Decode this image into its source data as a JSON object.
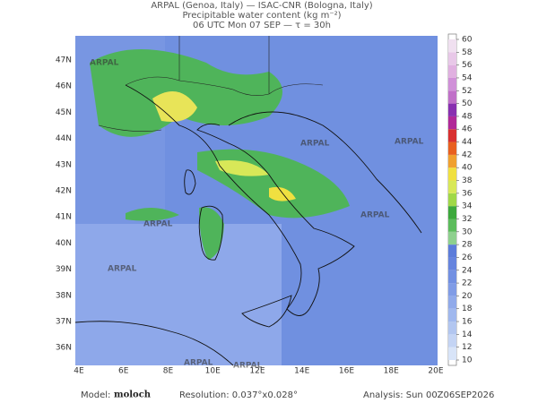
{
  "header": {
    "lines": [
      "ARPAL (Genoa, Italy)  —  ISAC-CNR (Bologna, Italy)",
      "Precipitable water content (kg m⁻²)",
      "06 UTC Mon 07 SEP  —  τ = 30h"
    ]
  },
  "map": {
    "lat_labels": [
      "47N",
      "46N",
      "45N",
      "44N",
      "43N",
      "42N",
      "41N",
      "40N",
      "39N",
      "38N",
      "37N",
      "36N"
    ],
    "lon_labels": [
      "4E",
      "6E",
      "8E",
      "10E",
      "12E",
      "14E",
      "16E",
      "18E",
      "20E"
    ],
    "watermark": "ARPAL"
  },
  "colorbar": {
    "ticks": [
      10,
      12,
      14,
      16,
      18,
      20,
      22,
      24,
      26,
      28,
      30,
      32,
      34,
      36,
      38,
      40,
      42,
      44,
      46,
      48,
      50,
      52,
      54,
      56,
      58,
      60
    ],
    "colors": [
      "#d8e4f8",
      "#c4d4f4",
      "#b2c6f0",
      "#a0b8ee",
      "#90aaea",
      "#809ce6",
      "#7290e2",
      "#6684de",
      "#5c7cda",
      "#8ed08e",
      "#5cbc5c",
      "#3ca83c",
      "#a0d848",
      "#d8e858",
      "#f0e040",
      "#f0a030",
      "#e86020",
      "#d83030",
      "#b02898",
      "#8830b0",
      "#c070c8",
      "#d090d8",
      "#e0b0e0",
      "#e8c8e8",
      "#f0e0f0"
    ]
  },
  "footer": {
    "model_label": "Model:",
    "model": "moloch",
    "resolution": "Resolution: 0.037°x0.028°",
    "analysis": "Analysis: Sun 00Z06SEP2026"
  }
}
